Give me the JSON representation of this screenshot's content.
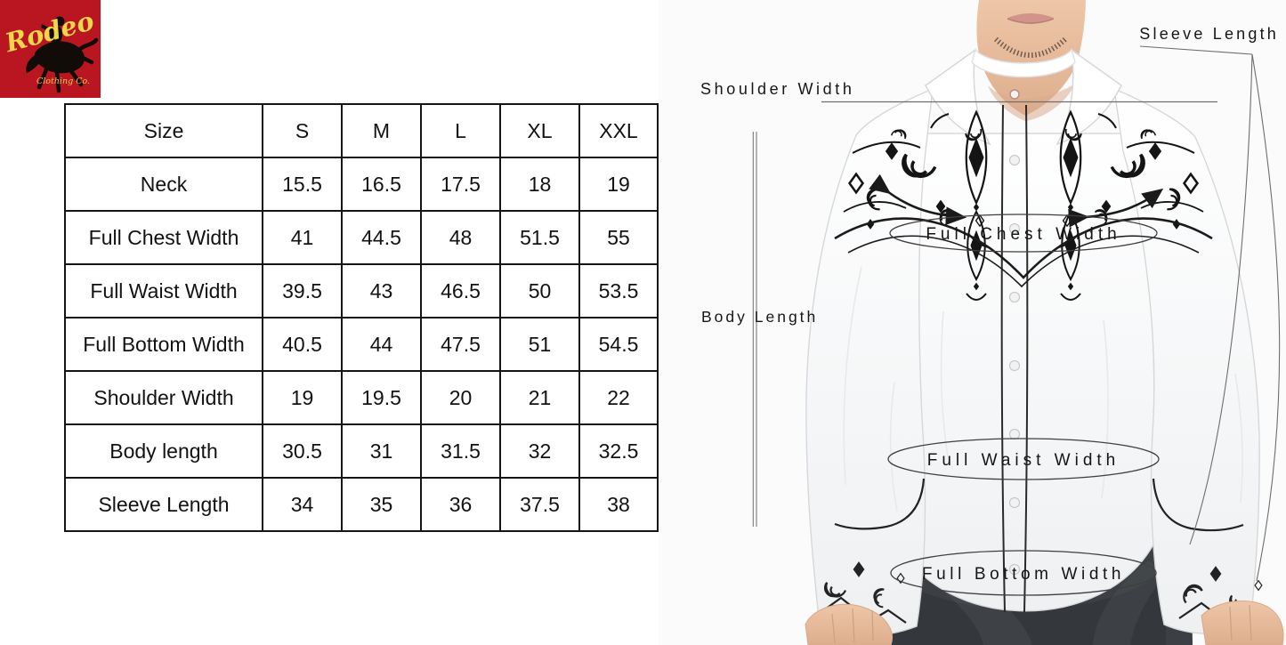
{
  "logo": {
    "brand": "Rodeo",
    "subtitle": "Clothing Co.",
    "bg_color": "#b91622",
    "text_color": "#f0d64a"
  },
  "size_table": {
    "header": [
      "Size",
      "S",
      "M",
      "L",
      "XL",
      "XXL"
    ],
    "rows": [
      {
        "label": "Neck",
        "values": [
          "15.5",
          "16.5",
          "17.5",
          "18",
          "19"
        ]
      },
      {
        "label": "Full Chest Width",
        "values": [
          "41",
          "44.5",
          "48",
          "51.5",
          "55"
        ]
      },
      {
        "label": "Full Waist Width",
        "values": [
          "39.5",
          "43",
          "46.5",
          "50",
          "53.5"
        ]
      },
      {
        "label": "Full Bottom Width",
        "values": [
          "40.5",
          "44",
          "47.5",
          "51",
          "54.5"
        ]
      },
      {
        "label": "Shoulder Width",
        "values": [
          "19",
          "19.5",
          "20",
          "21",
          "22"
        ]
      },
      {
        "label": "Body length",
        "values": [
          "30.5",
          "31",
          "31.5",
          "32",
          "32.5"
        ]
      },
      {
        "label": "Sleeve Length",
        "values": [
          "34",
          "35",
          "36",
          "37.5",
          "38"
        ]
      }
    ]
  },
  "diagram": {
    "labels": {
      "shoulder_width": "Shoulder Width",
      "body_length": "Body Length",
      "sleeve_length": "Sleeve Length",
      "full_chest_width": "Full Chest Width",
      "full_waist_width": "Full Waist Width",
      "full_bottom_width": "Full Bottom Width"
    },
    "annotation_color": "#1c1c1c",
    "line_color": "#666666"
  }
}
